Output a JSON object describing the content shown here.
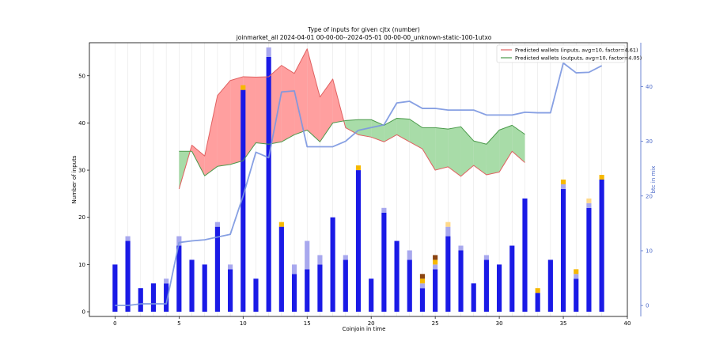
{
  "chart_data": {
    "type": "bar",
    "title": "Type of inputs for given cjtx (number)",
    "subtitle": "joinmarket_all 2024-04-01 00-00-00--2024-05-01 00-00-00_unknown-static-100-1utxo",
    "xlabel": "Coinjoin in time",
    "ylabel": "Number of inputs",
    "y2label": "btc in mix",
    "xlim": [
      -2,
      40
    ],
    "ylim": [
      -1,
      57
    ],
    "y2lim": [
      -2,
      48
    ],
    "xticks": [
      0,
      5,
      10,
      15,
      20,
      25,
      30,
      35,
      40
    ],
    "yticks": [
      0,
      10,
      20,
      30,
      40,
      50
    ],
    "y2ticks": [
      0,
      10,
      20,
      30,
      40
    ],
    "grid": "vertical",
    "legend_position": "top-right",
    "x": [
      0,
      1,
      2,
      3,
      4,
      5,
      6,
      7,
      8,
      9,
      10,
      11,
      12,
      13,
      14,
      15,
      16,
      17,
      18,
      19,
      20,
      21,
      22,
      23,
      24,
      25,
      26,
      27,
      28,
      29,
      30,
      31,
      32,
      33,
      34,
      35,
      36,
      37,
      38
    ],
    "bar_series": [
      {
        "color": "#1a1ae6",
        "values": [
          10,
          15,
          5,
          6,
          6,
          14,
          11,
          10,
          18,
          9,
          47,
          7,
          54,
          18,
          8,
          9,
          10,
          20,
          11,
          30,
          7,
          21,
          15,
          11,
          5,
          9,
          16,
          13,
          6,
          11,
          10,
          14,
          24,
          4,
          11,
          26,
          7,
          22,
          28
        ]
      },
      {
        "color": "#a8a8ee",
        "values": [
          0,
          1,
          0,
          0,
          1,
          2,
          0,
          0,
          1,
          1,
          0,
          0,
          2,
          0,
          2,
          6,
          2,
          0,
          1,
          0,
          0,
          1,
          0,
          2,
          1,
          1,
          2,
          1,
          0,
          1,
          0,
          0,
          0,
          0,
          0,
          1,
          1,
          1,
          0
        ]
      },
      {
        "color": "#f6b800",
        "values": [
          0,
          0,
          0,
          0,
          0,
          0,
          0,
          0,
          0,
          0,
          1,
          0,
          0,
          1,
          0,
          0,
          0,
          0,
          0,
          1,
          0,
          0,
          0,
          0,
          1,
          1,
          0,
          0,
          0,
          0,
          0,
          0,
          0,
          1,
          0,
          1,
          1,
          0,
          1
        ]
      },
      {
        "color": "#ffd98a",
        "values": [
          0,
          0,
          0,
          0,
          0,
          0,
          0,
          0,
          0,
          0,
          0,
          0,
          0,
          0,
          0,
          0,
          0,
          0,
          0,
          0,
          0,
          0,
          0,
          0,
          0,
          0,
          1,
          0,
          0,
          0,
          0,
          0,
          0,
          0,
          0,
          0,
          0,
          1,
          0
        ]
      },
      {
        "color": "#8b4513",
        "values": [
          0,
          0,
          0,
          0,
          0,
          0,
          0,
          0,
          0,
          0,
          0,
          0,
          0,
          0,
          0,
          0,
          0,
          0,
          0,
          0,
          0,
          0,
          0,
          0,
          1,
          1,
          0,
          0,
          0,
          0,
          0,
          0,
          0,
          0,
          0,
          0,
          0,
          0,
          0
        ]
      }
    ],
    "btc_in_mix": {
      "color": "#7a96e0",
      "x": [
        0,
        1,
        2,
        3,
        4,
        5,
        6,
        7,
        8,
        9,
        10,
        11,
        12,
        13,
        14,
        15,
        16,
        17,
        18,
        19,
        20,
        21,
        22,
        23,
        24,
        25,
        26,
        27,
        28,
        29,
        30,
        31,
        32,
        33,
        34,
        35,
        36,
        37,
        38
      ],
      "values": [
        0,
        0,
        0.3,
        0.3,
        0.3,
        11.5,
        11.8,
        12,
        12.5,
        13,
        20,
        28,
        27,
        39,
        39.2,
        29,
        29,
        29,
        30,
        32,
        32.5,
        33,
        37,
        37.3,
        36,
        36,
        35.7,
        35.7,
        35.7,
        34.8,
        34.8,
        34.8,
        35.3,
        35.2,
        35.2,
        44.3,
        42.5,
        42.6,
        43.8
      ]
    },
    "predicted_inputs": {
      "name": "Predicted wallets (inputs, avg=10, factor=4.61)",
      "line_color": "#e06060",
      "fill_color": "#ff9f9f",
      "x": [
        5,
        6,
        7,
        8,
        9,
        10,
        11,
        12,
        13,
        14,
        15,
        16,
        17,
        18,
        19,
        20,
        21,
        22,
        23,
        24,
        25,
        26,
        27,
        28,
        29,
        30,
        31,
        32
      ],
      "values": [
        26,
        35.3,
        33,
        45.8,
        49,
        49.8,
        49.7,
        49.8,
        52.2,
        50.5,
        55.7,
        45.5,
        49.3,
        39,
        37.5,
        37,
        36,
        37.5,
        36,
        34.5,
        30,
        30.7,
        28.7,
        31,
        29,
        29.6,
        34,
        31.6
      ]
    },
    "predicted_outputs": {
      "name": "Predicted wallets (outputs, avg=10, factor=4.05)",
      "line_color": "#4a9a4a",
      "fill_color": "#a8dca8",
      "x": [
        5,
        6,
        7,
        8,
        9,
        10,
        11,
        12,
        13,
        14,
        15,
        16,
        17,
        18,
        19,
        20,
        21,
        22,
        23,
        24,
        25,
        26,
        27,
        28,
        29,
        30,
        31,
        32
      ],
      "values": [
        34,
        34,
        28.8,
        30.8,
        31.2,
        32,
        35.8,
        35.5,
        36,
        37.5,
        38.5,
        36,
        40,
        40.5,
        40.7,
        40.7,
        39.5,
        41,
        40.8,
        39,
        39,
        38.7,
        39.2,
        36.2,
        35.5,
        38.5,
        39.5,
        37.6
      ]
    }
  }
}
